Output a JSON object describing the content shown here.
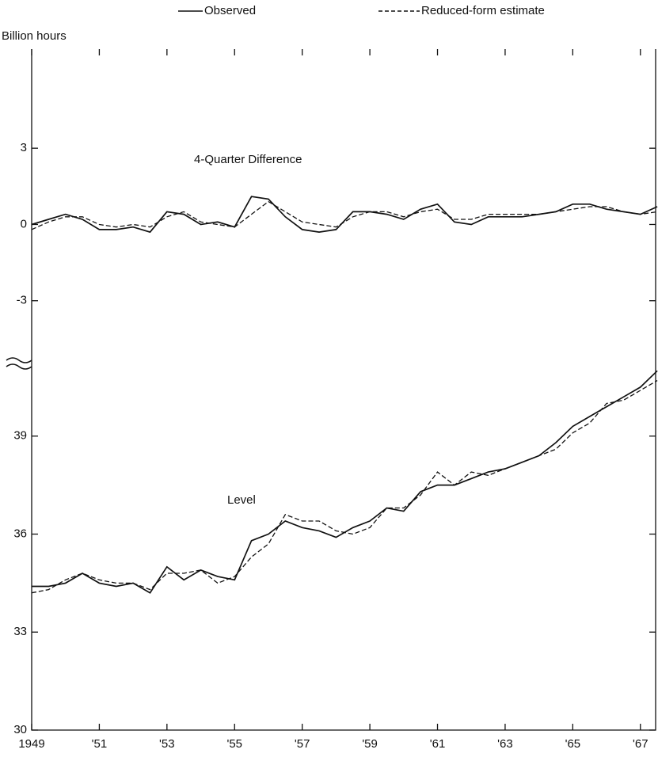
{
  "chart_data": [
    {
      "type": "line",
      "ylabel": "Billion hours",
      "annotation": "4-Quarter Difference",
      "x": [
        1949.0,
        1949.5,
        1950.0,
        1950.5,
        1951.0,
        1951.5,
        1952.0,
        1952.5,
        1953.0,
        1953.5,
        1954.0,
        1954.5,
        1955.0,
        1955.5,
        1956.0,
        1956.5,
        1957.0,
        1957.5,
        1958.0,
        1958.5,
        1959.0,
        1959.5,
        1960.0,
        1960.5,
        1961.0,
        1961.5,
        1962.0,
        1962.5,
        1963.0,
        1963.5,
        1964.0,
        1964.5,
        1965.0,
        1965.5,
        1966.0,
        1966.5,
        1967.0,
        1967.5
      ],
      "series": [
        {
          "name": "Observed",
          "color": "#111111",
          "dash": "solid",
          "values": [
            0,
            0.2,
            0.4,
            0.2,
            -0.2,
            -0.2,
            -0.1,
            -0.3,
            0.5,
            0.4,
            0,
            0.1,
            -0.1,
            1.1,
            1.0,
            0.3,
            -0.2,
            -0.3,
            -0.2,
            0.5,
            0.5,
            0.4,
            0.2,
            0.6,
            0.8,
            0.1,
            0,
            0.3,
            0.3,
            0.3,
            0.4,
            0.5,
            0.8,
            0.8,
            0.6,
            0.5,
            0.4,
            0.7
          ]
        },
        {
          "name": "Reduced-form estimate",
          "color": "#111111",
          "dash": "dashed",
          "values": [
            -0.2,
            0.1,
            0.3,
            0.3,
            0,
            -0.1,
            0,
            -0.1,
            0.3,
            0.5,
            0.1,
            0,
            -0.1,
            0.4,
            0.9,
            0.5,
            0.1,
            0,
            -0.1,
            0.3,
            0.5,
            0.5,
            0.3,
            0.5,
            0.6,
            0.2,
            0.2,
            0.4,
            0.4,
            0.4,
            0.4,
            0.5,
            0.6,
            0.7,
            0.7,
            0.5,
            0.4,
            0.5
          ]
        }
      ],
      "xlim": [
        1949,
        1967.45
      ],
      "xticks": [
        1949,
        {
          "value": 1951,
          "label": "'51"
        },
        {
          "value": 1953,
          "label": "'53"
        },
        {
          "value": 1955,
          "label": "'55"
        },
        {
          "value": 1957,
          "label": "'57"
        },
        {
          "value": 1959,
          "label": "'59"
        },
        {
          "value": 1961,
          "label": "'61"
        },
        {
          "value": 1963,
          "label": "'63"
        },
        {
          "value": 1965,
          "label": "'65"
        },
        {
          "value": 1967,
          "label": "'67"
        }
      ],
      "ylim": [
        -5.5,
        6.9
      ],
      "yticks": [
        3,
        0,
        -3
      ]
    },
    {
      "type": "line",
      "annotation": "Level",
      "x": [
        1949.0,
        1949.5,
        1950.0,
        1950.5,
        1951.0,
        1951.5,
        1952.0,
        1952.5,
        1953.0,
        1953.5,
        1954.0,
        1954.5,
        1955.0,
        1955.5,
        1956.0,
        1956.5,
        1957.0,
        1957.5,
        1958.0,
        1958.5,
        1959.0,
        1959.5,
        1960.0,
        1960.5,
        1961.0,
        1961.5,
        1962.0,
        1962.5,
        1963.0,
        1963.5,
        1964.0,
        1964.5,
        1965.0,
        1965.5,
        1966.0,
        1966.5,
        1967.0,
        1967.5
      ],
      "series": [
        {
          "color": "#111111",
          "dash": "solid",
          "values": [
            34.4,
            34.4,
            34.5,
            34.8,
            34.5,
            34.4,
            34.5,
            34.2,
            35.0,
            34.6,
            34.9,
            34.7,
            34.6,
            35.8,
            36.0,
            36.4,
            36.2,
            36.1,
            35.9,
            36.2,
            36.4,
            36.8,
            36.7,
            37.3,
            37.5,
            37.5,
            37.7,
            37.9,
            38.0,
            38.2,
            38.4,
            38.8,
            39.3,
            39.6,
            39.9,
            40.2,
            40.5,
            41.0
          ]
        },
        {
          "color": "#111111",
          "dash": "dashed",
          "values": [
            34.2,
            34.3,
            34.6,
            34.8,
            34.6,
            34.5,
            34.5,
            34.3,
            34.8,
            34.8,
            34.9,
            34.5,
            34.7,
            35.3,
            35.7,
            36.6,
            36.4,
            36.4,
            36.1,
            36.0,
            36.2,
            36.8,
            36.8,
            37.2,
            37.9,
            37.5,
            37.9,
            37.8,
            38.0,
            38.2,
            38.4,
            38.6,
            39.1,
            39.4,
            40.0,
            40.1,
            40.4,
            40.7
          ]
        }
      ],
      "xlim": [
        1949,
        1967.45
      ],
      "ylim": [
        30,
        41.2
      ],
      "yticks": [
        39,
        36,
        33,
        30
      ]
    }
  ]
}
